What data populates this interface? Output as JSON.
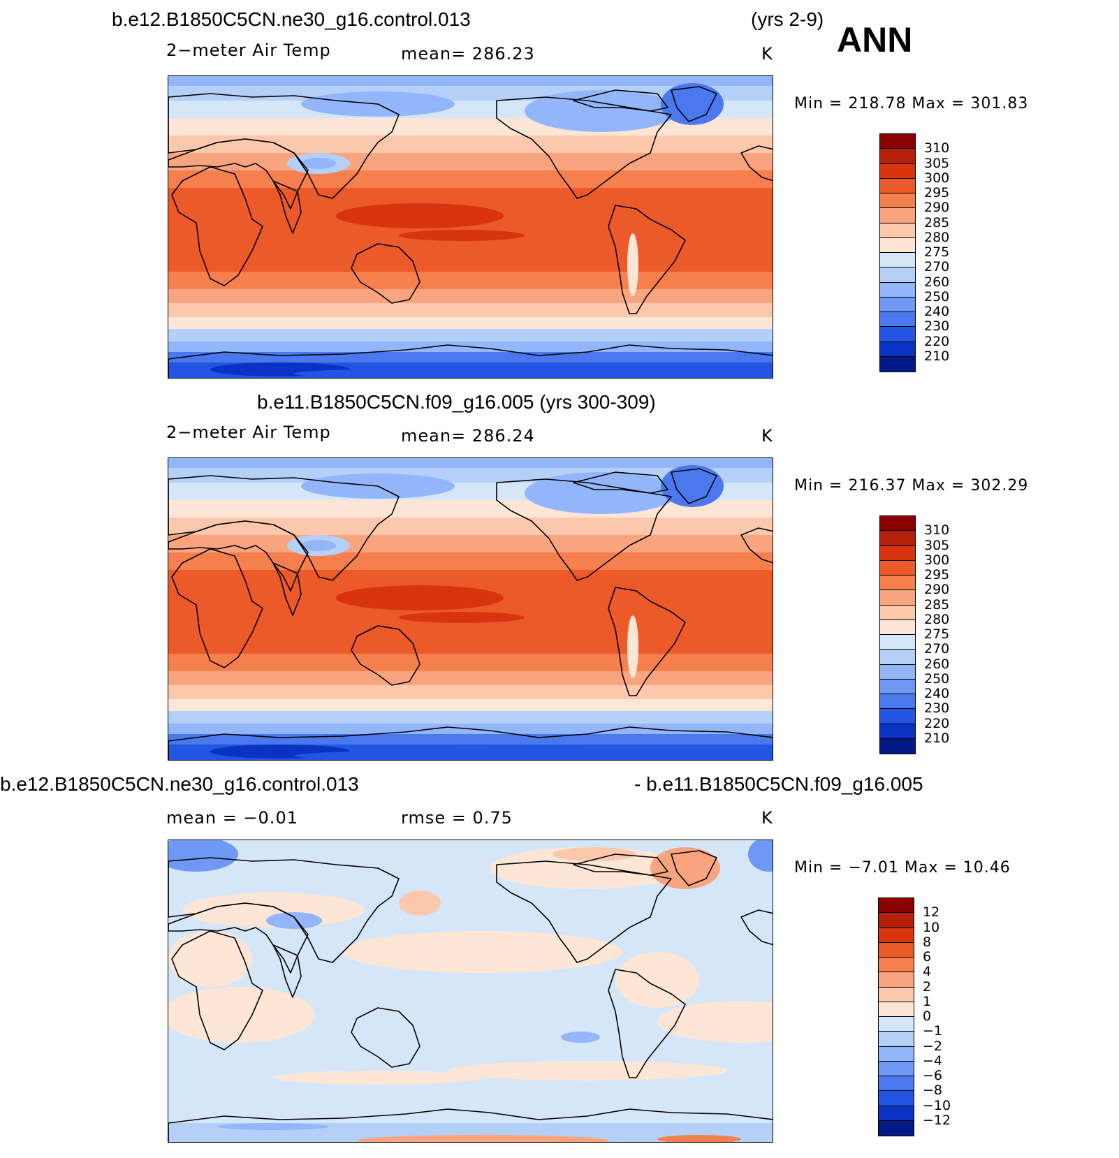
{
  "header": {
    "case1": "b.e12.B1850C5CN.ne30_g16.control.013",
    "case1_years": "(yrs 2-9)",
    "season": "ANN"
  },
  "panels": [
    {
      "title": "",
      "variable": "2−meter Air Temp",
      "stat1": "mean=  286.23",
      "stat2": "",
      "units": "K",
      "minmax": "Min  =  218.78  Max  =  301.83",
      "levels": [
        "310",
        "305",
        "300",
        "295",
        "290",
        "285",
        "280",
        "275",
        "270",
        "260",
        "250",
        "240",
        "230",
        "220",
        "210"
      ],
      "colors": [
        "#8b0000",
        "#b5200a",
        "#d8350f",
        "#ec5a2a",
        "#f57f4d",
        "#f8a47e",
        "#fbc8ad",
        "#fde6d6",
        "#d5e6f8",
        "#b4cff8",
        "#93b6fa",
        "#6f98f5",
        "#4a78ee",
        "#2155e2",
        "#0a33c4",
        "#011a86"
      ],
      "map": {
        "style": "abs"
      }
    },
    {
      "title": "b.e11.B1850C5CN.f09_g16.005 (yrs 300-309)",
      "variable": "2−meter Air Temp",
      "stat1": "mean=  286.24",
      "stat2": "",
      "units": "K",
      "minmax": "Min  =  216.37  Max  =  302.29",
      "levels": [
        "310",
        "305",
        "300",
        "295",
        "290",
        "285",
        "280",
        "275",
        "270",
        "260",
        "250",
        "240",
        "230",
        "220",
        "210"
      ],
      "colors": [
        "#8b0000",
        "#b5200a",
        "#d8350f",
        "#ec5a2a",
        "#f57f4d",
        "#f8a47e",
        "#fbc8ad",
        "#fde6d6",
        "#d5e6f8",
        "#b4cff8",
        "#93b6fa",
        "#6f98f5",
        "#4a78ee",
        "#2155e2",
        "#0a33c4",
        "#011a86"
      ],
      "map": {
        "style": "abs"
      }
    },
    {
      "title": "b.e12.B1850C5CN.ne30_g16.control.013",
      "title_right": "- b.e11.B1850C5CN.f09_g16.005",
      "variable": "",
      "stat1": "mean =    −0.01",
      "stat2": "rmse =     0.75",
      "units": "K",
      "minmax": "Min  =    −7.01  Max  =    10.46",
      "levels": [
        "12",
        "10",
        "8",
        "6",
        "4",
        "2",
        "1",
        "0",
        "−1",
        "−2",
        "−4",
        "−6",
        "−8",
        "−10",
        "−12"
      ],
      "colors": [
        "#8b0000",
        "#b5200a",
        "#d8350f",
        "#ec5a2a",
        "#f57f4d",
        "#f8a47e",
        "#fbc8ad",
        "#fde6d6",
        "#d5e6f8",
        "#b4cff8",
        "#93b6fa",
        "#6f98f5",
        "#4a78ee",
        "#2155e2",
        "#0a33c4",
        "#011a86"
      ],
      "map": {
        "style": "diff"
      }
    }
  ]
}
